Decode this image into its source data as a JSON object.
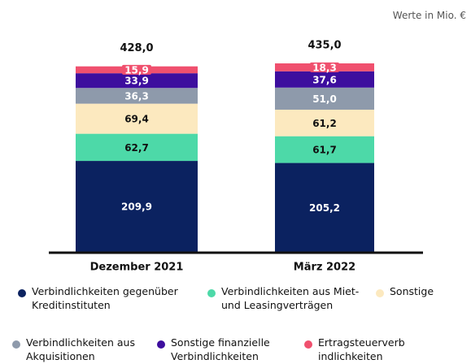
{
  "chart_data": {
    "type": "stacked_bar",
    "subtitle": "Werte in Mio. €",
    "categories": [
      "Dezember 2021",
      "März 2022"
    ],
    "totals": [
      {
        "value": 428,
        "label": "428,0"
      },
      {
        "value": 435,
        "label": "435,0"
      }
    ],
    "series": [
      {
        "name": "Verbindlichkeiten gegenüber Kreditinstituten",
        "color": "#0b2260",
        "values": [
          209.9,
          205.2
        ],
        "value_labels": [
          "209,9",
          "205,2"
        ]
      },
      {
        "name": "Verbindlichkeiten aus Miet- und Leasingverträgen",
        "color": "#4dd9a8",
        "values": [
          62.7,
          61.7
        ],
        "value_labels": [
          "62,7",
          "61,7"
        ]
      },
      {
        "name": "Sonstige",
        "color": "#fce9bf",
        "values": [
          69.4,
          61.2
        ],
        "value_labels": [
          "69,4",
          "61,2"
        ]
      },
      {
        "name": "Verbindlichkeiten aus Akquisitionen",
        "color": "#8e9aab",
        "values": [
          36.3,
          51.0
        ],
        "value_labels": [
          "36,3",
          "51,0"
        ]
      },
      {
        "name": "Sonstige finanzielle Verbindlichkeiten",
        "color": "#3d0e9e",
        "values": [
          33.9,
          37.6
        ],
        "value_labels": [
          "33,9",
          "37,6"
        ]
      },
      {
        "name": "Ertragsteuerverbindlichkeiten",
        "color": "#f0506e",
        "values": [
          15.9,
          18.3
        ],
        "value_labels": [
          "15,9",
          "18,3"
        ]
      }
    ]
  }
}
